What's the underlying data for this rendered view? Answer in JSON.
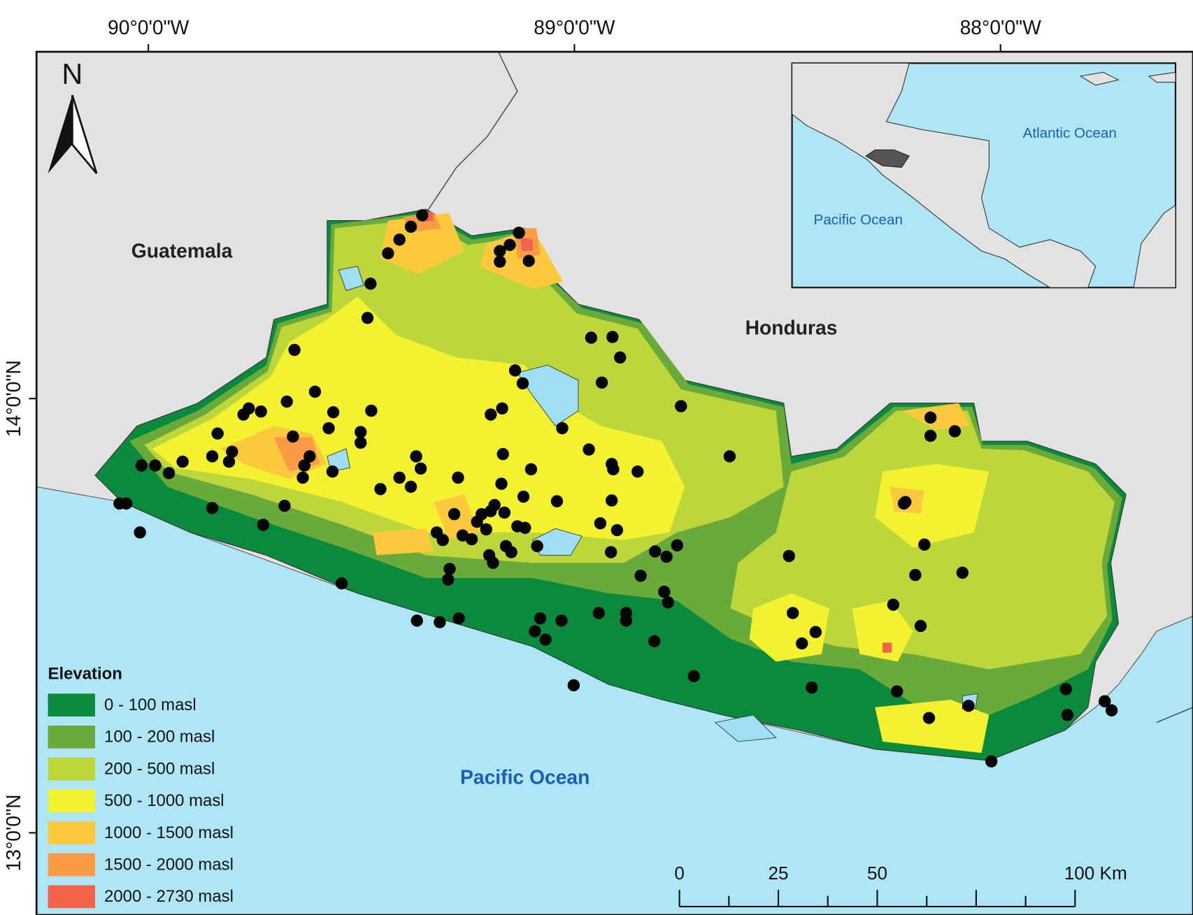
{
  "map": {
    "longitude_labels": [
      "90°0'0\"W",
      "89°0'0\"W",
      "88°0'0\"W"
    ],
    "latitude_labels": [
      "14°0'0\"N",
      "13°0'0\"N"
    ],
    "north": "N",
    "places": {
      "guatemala": "Guatemala",
      "honduras": "Honduras",
      "pacific": "Pacific Ocean"
    },
    "inset": {
      "pacific": "Pacific Ocean",
      "atlantic": "Atlantic Ocean"
    },
    "legend": {
      "title": "Elevation",
      "items": [
        {
          "label": "0 - 100 masl",
          "color": "#0a8a3c"
        },
        {
          "label": "100 - 200 masl",
          "color": "#6aaa3a"
        },
        {
          "label": "200 - 500 masl",
          "color": "#bcd63c"
        },
        {
          "label": "500 - 1000 masl",
          "color": "#f2f230"
        },
        {
          "label": "1000 - 1500 masl",
          "color": "#fcc83c"
        },
        {
          "label": "1500 - 2000 masl",
          "color": "#f99b45"
        },
        {
          "label": "2000 - 2730 masl",
          "color": "#f2634a"
        }
      ]
    },
    "scale_bar": {
      "labels": [
        "0",
        "25",
        "50",
        "100 Km"
      ]
    }
  }
}
